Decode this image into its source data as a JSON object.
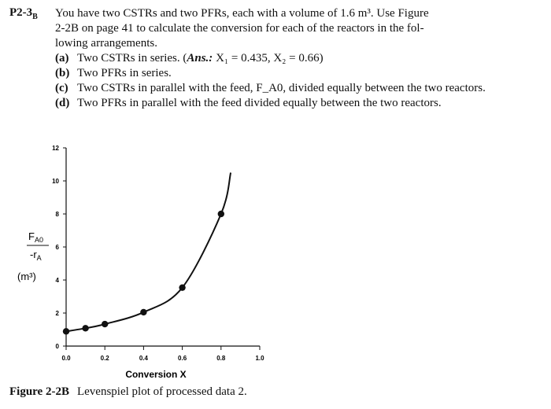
{
  "problem": {
    "id_main": "P2-3",
    "id_sub": "B",
    "intro_line1": "You have two CSTRs and two PFRs, each with a volume of 1.6 m³. Use Figure",
    "intro_line2": "2-2B on page 41 to calculate the conversion for each of the reactors in the fol-",
    "intro_line3": "lowing arrangements.",
    "parts": [
      {
        "label": "(a)",
        "text": "Two CSTRs in series. (",
        "ans_label": "Ans.:",
        "ans_text": " X₁ = 0.435, X₂ = 0.66)"
      },
      {
        "label": "(b)",
        "text": "Two PFRs in series."
      },
      {
        "label": "(c)",
        "text": "Two CSTRs in parallel with the feed, F_A0, divided equally between the two reactors."
      },
      {
        "label": "(d)",
        "text": "Two PFRs in parallel with the feed divided equally between the two reactors."
      }
    ]
  },
  "chart_data": {
    "type": "line",
    "x": [
      0.0,
      0.1,
      0.2,
      0.4,
      0.6,
      0.8
    ],
    "y": [
      0.89,
      1.08,
      1.33,
      2.05,
      3.54,
      8.0
    ],
    "curve_end": [
      0.85,
      10.5
    ],
    "xlabel": "Conversion X",
    "ylabel_num": "F",
    "ylabel_num_sub": "A0",
    "ylabel_den": "-r",
    "ylabel_den_sub": "A",
    "ylabel_units": "(m³)",
    "xlim": [
      0.0,
      1.0
    ],
    "ylim": [
      0,
      12
    ],
    "xticks": [
      "0.0",
      "0.2",
      "0.4",
      "0.6",
      "0.8",
      "1.0"
    ],
    "yticks": [
      "0",
      "2",
      "4",
      "6",
      "8",
      "10",
      "12"
    ],
    "grid": false
  },
  "caption": {
    "label": "Figure 2-2B",
    "text": "Levenspiel plot of processed data 2."
  }
}
